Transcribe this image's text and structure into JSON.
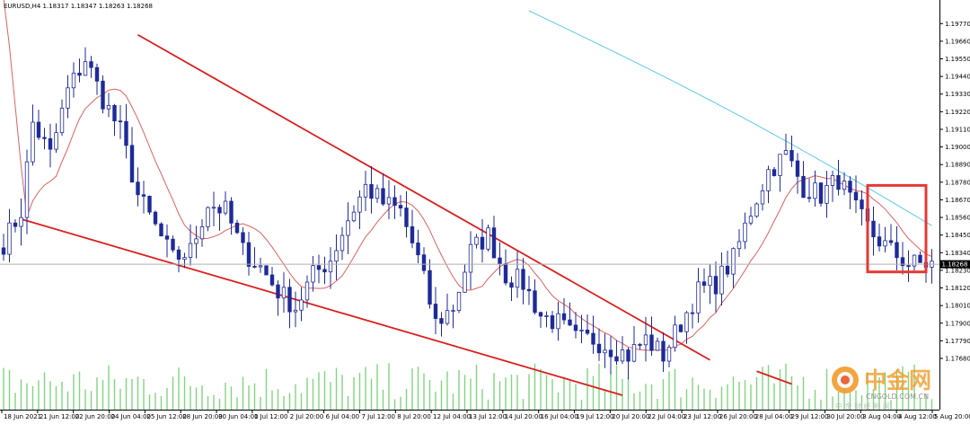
{
  "chart_data": {
    "type": "candlestick",
    "symbol_line": "EURUSD,H4  1.18317 1.18347 1.18263 1.18268",
    "current_price_label": "1.18268",
    "ylim": [
      1.1745,
      1.1985
    ],
    "y_ticks": [
      "1.19770",
      "1.19660",
      "1.19550",
      "1.19440",
      "1.19330",
      "1.19220",
      "1.19110",
      "1.19000",
      "1.18890",
      "1.18780",
      "1.18670",
      "1.18560",
      "1.18450",
      "1.18340",
      "1.18230",
      "1.18120",
      "1.18010",
      "1.17900",
      "1.17790",
      "1.17680"
    ],
    "x_ticks": [
      "18 Jun 2021",
      "21 Jun 12:00",
      "22 Jun 20:00",
      "24 Jun 04:00",
      "25 Jun 12:00",
      "28 Jun 20:00",
      "30 Jun 04:00",
      "1 Jul 12:00",
      "2 Jul 20:00",
      "6 Jul 04:00",
      "7 Jul 12:00",
      "8 Jul 20:00",
      "12 Jul 04:00",
      "13 Jul 12:00",
      "14 Jul 20:00",
      "16 Jul 04:00",
      "19 Jul 12:00",
      "20 Jul 20:00",
      "22 Jul 04:00",
      "23 Jul 12:00",
      "26 Jul 20:00",
      "28 Jul 04:00",
      "29 Jul 12:00",
      "30 Jul 20:00",
      "3 Aug 04:00",
      "4 Aug 12:00",
      "5 Aug 20:00"
    ],
    "close_path": [
      [
        0,
        1.184
      ],
      [
        3,
        1.186
      ],
      [
        5,
        1.1915
      ],
      [
        8,
        1.1895
      ],
      [
        11,
        1.1935
      ],
      [
        14,
        1.1955
      ],
      [
        17,
        1.193
      ],
      [
        20,
        1.191
      ],
      [
        23,
        1.187
      ],
      [
        26,
        1.185
      ],
      [
        29,
        1.183
      ],
      [
        32,
        1.1835
      ],
      [
        35,
        1.1865
      ],
      [
        38,
        1.186
      ],
      [
        41,
        1.1835
      ],
      [
        44,
        1.1825
      ],
      [
        47,
        1.181
      ],
      [
        50,
        1.18
      ],
      [
        53,
        1.182
      ],
      [
        56,
        1.183
      ],
      [
        59,
        1.1855
      ],
      [
        62,
        1.1875
      ],
      [
        65,
        1.1865
      ],
      [
        68,
        1.186
      ],
      [
        71,
        1.183
      ],
      [
        74,
        1.179
      ],
      [
        77,
        1.18
      ],
      [
        80,
        1.1835
      ],
      [
        83,
        1.1845
      ],
      [
        86,
        1.182
      ],
      [
        89,
        1.1815
      ],
      [
        92,
        1.1795
      ],
      [
        95,
        1.179
      ],
      [
        98,
        1.178
      ],
      [
        101,
        1.178
      ],
      [
        104,
        1.1775
      ],
      [
        107,
        1.177
      ],
      [
        110,
        1.178
      ],
      [
        113,
        1.177
      ],
      [
        116,
        1.179
      ],
      [
        119,
        1.181
      ],
      [
        122,
        1.1815
      ],
      [
        125,
        1.183
      ],
      [
        128,
        1.186
      ],
      [
        131,
        1.1885
      ],
      [
        134,
        1.1895
      ],
      [
        137,
        1.1875
      ],
      [
        140,
        1.187
      ],
      [
        143,
        1.188
      ],
      [
        146,
        1.186
      ],
      [
        149,
        1.1845
      ],
      [
        152,
        1.1835
      ],
      [
        155,
        1.1827
      ]
    ],
    "trendlines": [
      {
        "from": [
          3,
          1.1855
        ],
        "to": [
          106,
          1.1745
        ]
      },
      {
        "from": [
          23,
          1.197
        ],
        "to": [
          121,
          1.1767
        ]
      }
    ],
    "highlight_box": {
      "from_index": 148,
      "to_index": 158,
      "y_from": 1.1876,
      "y_to": 1.1822
    },
    "watermark": {
      "brand": "中金网",
      "site": "CNGOLD.COM.CN",
      "footer": "中 金 财 经 新 闻"
    }
  }
}
